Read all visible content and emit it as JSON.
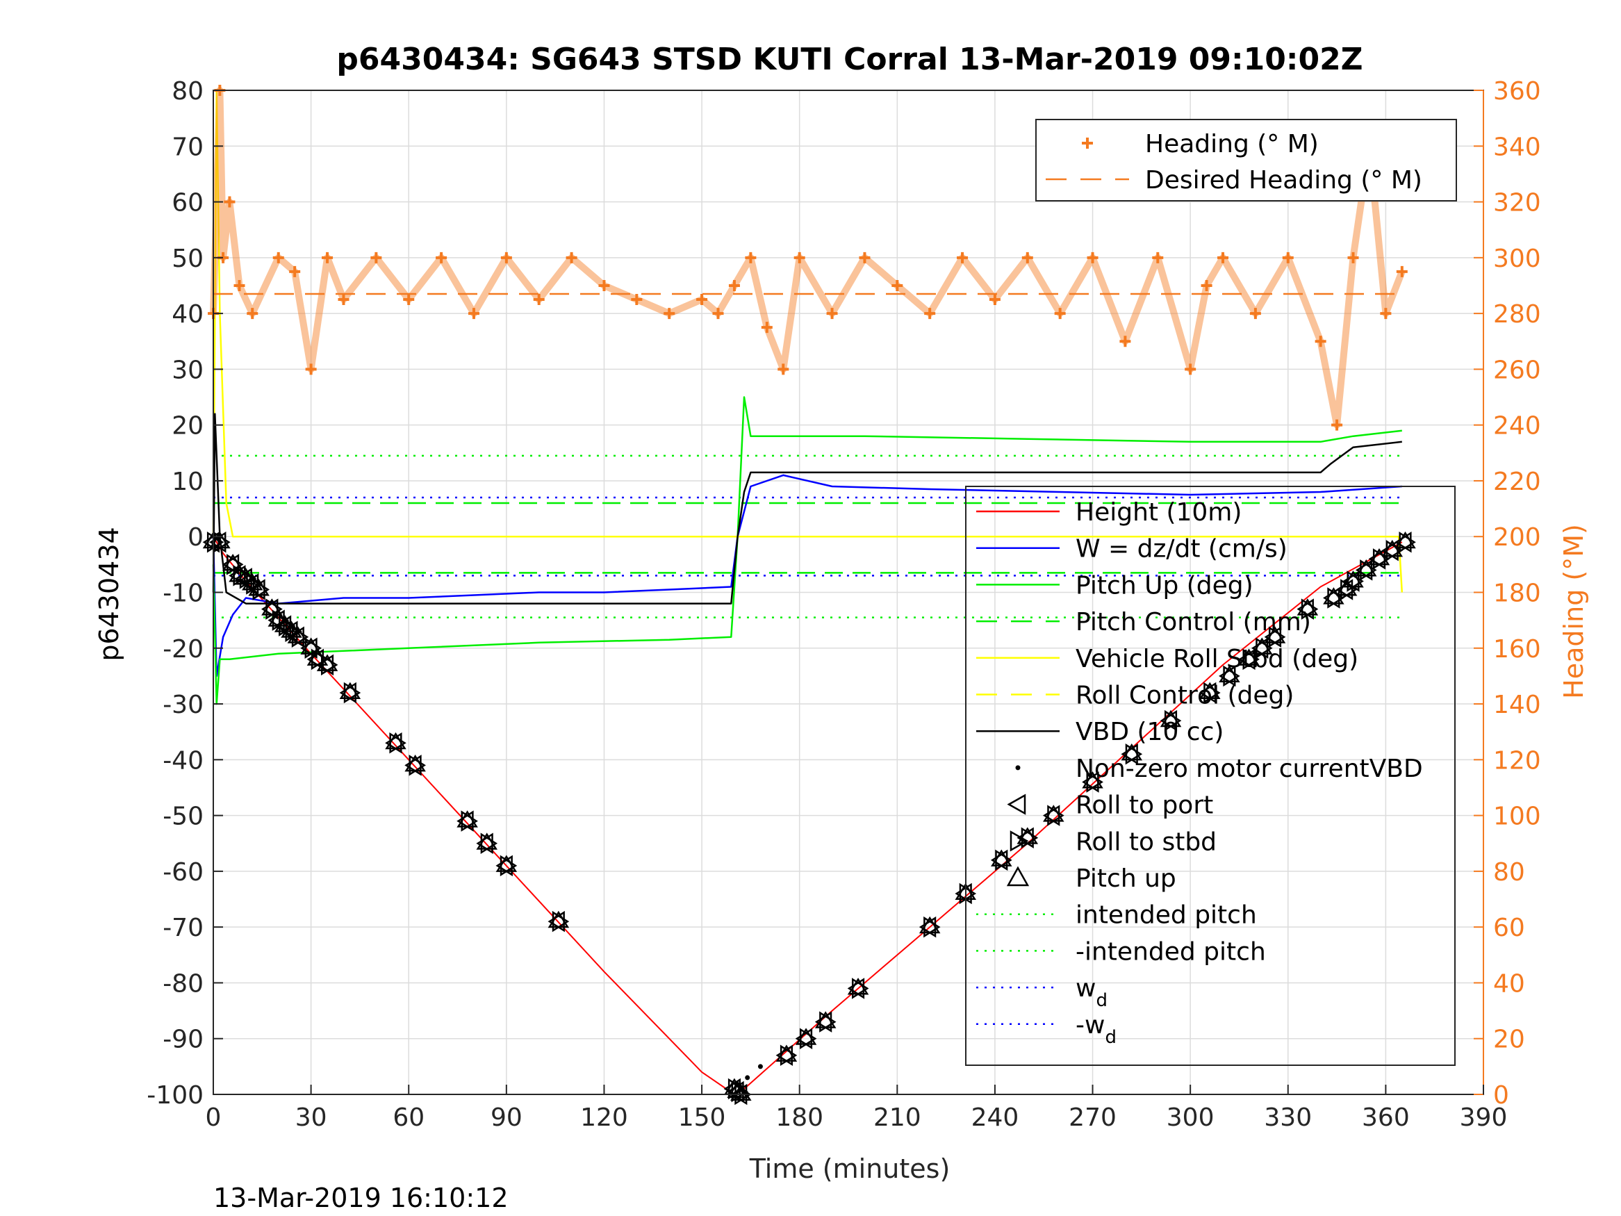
{
  "page": {
    "timestamp_footer": "13-Mar-2019 16:10:12"
  },
  "chart_data": {
    "type": "line",
    "title": "p6430434: SG643 STSD KUTI Corral 13-Mar-2019 09:10:02Z",
    "xlabel": "Time (minutes)",
    "ylabel": "p6430434",
    "y2label": "Heading (°M)",
    "xlim": [
      0,
      390
    ],
    "ylim": [
      -100,
      80
    ],
    "y2lim": [
      0,
      360
    ],
    "xticks": [
      0,
      30,
      60,
      90,
      120,
      150,
      180,
      210,
      240,
      270,
      300,
      330,
      360,
      390
    ],
    "yticks": [
      -100,
      -90,
      -80,
      -70,
      -60,
      -50,
      -40,
      -30,
      -20,
      -10,
      0,
      10,
      20,
      30,
      40,
      50,
      60,
      70,
      80
    ],
    "y2ticks": [
      0,
      20,
      40,
      60,
      80,
      100,
      120,
      140,
      160,
      180,
      200,
      220,
      240,
      260,
      280,
      300,
      320,
      340,
      360
    ],
    "grid": true,
    "colors": {
      "heading": "#f47a20",
      "height": "#ff0000",
      "w": "#0000ff",
      "pitch": "#00ee00",
      "roll": "#ffff00",
      "vbd": "#000000",
      "intended_pitch": "#00ee00",
      "wd": "#0000ff"
    },
    "legend_heading": {
      "placement": "top-right",
      "entries": [
        {
          "label": "Heading (° M)",
          "style": "plus",
          "color": "#f47a20"
        },
        {
          "label": "Desired Heading (° M)",
          "style": "dash",
          "color": "#f47a20"
        }
      ]
    },
    "legend_main": {
      "placement": "lower-right",
      "entries": [
        {
          "label": "Height (10m)",
          "style": "line",
          "color": "#ff0000"
        },
        {
          "label": "W = dz/dt (cm/s)",
          "style": "line",
          "color": "#0000ff"
        },
        {
          "label": "Pitch Up (deg)",
          "style": "line",
          "color": "#00ee00"
        },
        {
          "label": "Pitch Control (mm)",
          "style": "dash",
          "color": "#00ee00"
        },
        {
          "label": "Vehicle Roll Stbd (deg)",
          "style": "line",
          "color": "#ffff00"
        },
        {
          "label": "Roll Control (deg)",
          "style": "dash",
          "color": "#ffff00"
        },
        {
          "label": "VBD (10 cc)",
          "style": "line",
          "color": "#000000"
        },
        {
          "label": "Non-zero motor currentVBD",
          "style": "dot",
          "color": "#000000"
        },
        {
          "label": "Roll to port",
          "style": "tri-left",
          "color": "#000000"
        },
        {
          "label": "Roll to stbd",
          "style": "tri-right",
          "color": "#000000"
        },
        {
          "label": "Pitch up",
          "style": "tri-up",
          "color": "#000000"
        },
        {
          "label": "intended pitch",
          "style": "dot-line",
          "color": "#00ee00"
        },
        {
          "label": "-intended pitch",
          "style": "dot-line",
          "color": "#00ee00"
        },
        {
          "label": "w",
          "sub": "d",
          "style": "dot-line",
          "color": "#0000ff"
        },
        {
          "label": "-w",
          "sub": "d",
          "style": "dot-line",
          "color": "#0000ff"
        }
      ]
    },
    "series": [
      {
        "name": "Height (10m)",
        "axis": "left",
        "color": "#ff0000",
        "x": [
          0,
          3,
          10,
          30,
          60,
          90,
          120,
          150,
          160,
          163,
          190,
          220,
          250,
          280,
          310,
          340,
          365
        ],
        "y": [
          0,
          -3,
          -8,
          -21,
          -40,
          -59,
          -78,
          -96,
          -100,
          -99,
          -85,
          -70,
          -55,
          -39,
          -23,
          -9,
          -1
        ]
      },
      {
        "name": "W = dz/dt (cm/s)",
        "axis": "left",
        "color": "#0000ff",
        "x": [
          0,
          1,
          3,
          6,
          10,
          20,
          40,
          60,
          80,
          100,
          120,
          140,
          159,
          161,
          165,
          175,
          190,
          220,
          260,
          300,
          340,
          365
        ],
        "y": [
          0,
          -25,
          -18,
          -14,
          -11,
          -12,
          -11,
          -11,
          -10.5,
          -10,
          -10,
          -9.5,
          -9,
          0,
          9,
          11,
          9,
          8.5,
          8,
          7.5,
          8,
          9
        ]
      },
      {
        "name": "Pitch Up (deg)",
        "axis": "left",
        "color": "#00ee00",
        "x": [
          0,
          1,
          2,
          5,
          20,
          60,
          100,
          140,
          159,
          161,
          163,
          165,
          200,
          250,
          300,
          340,
          350,
          365
        ],
        "y": [
          -5,
          -30,
          -22,
          -22,
          -21,
          -20,
          -19,
          -18.5,
          -18,
          0,
          25,
          18,
          18,
          17.5,
          17,
          17,
          18,
          19
        ]
      },
      {
        "name": "Vehicle Roll Stbd (deg)",
        "axis": "left",
        "color": "#ffff00",
        "x": [
          0,
          1,
          2,
          4,
          6,
          10,
          40,
          80,
          120,
          159,
          161,
          200,
          260,
          300,
          330,
          364,
          365
        ],
        "y": [
          0,
          80,
          40,
          6,
          0,
          0,
          0,
          0,
          0,
          0,
          0,
          0,
          0,
          0,
          0,
          0,
          -10
        ]
      },
      {
        "name": "VBD (10 cc)",
        "axis": "left",
        "color": "#000000",
        "x": [
          0,
          0.5,
          2,
          4,
          10,
          60,
          110,
          150,
          159,
          161,
          163,
          165,
          200,
          250,
          300,
          340,
          343,
          350,
          365
        ],
        "y": [
          -10,
          22,
          0,
          -10,
          -12,
          -12,
          -12,
          -12,
          -12,
          0,
          8,
          11.5,
          11.5,
          11.5,
          11.5,
          11.5,
          13,
          16,
          17
        ]
      },
      {
        "name": "Heading (° M)",
        "axis": "right",
        "color": "#f47a20",
        "x": [
          0,
          2,
          3,
          5,
          8,
          12,
          20,
          25,
          30,
          35,
          40,
          50,
          60,
          70,
          80,
          90,
          100,
          110,
          120,
          130,
          140,
          150,
          155,
          160,
          165,
          170,
          175,
          180,
          190,
          200,
          210,
          220,
          230,
          240,
          250,
          260,
          270,
          280,
          290,
          300,
          305,
          310,
          320,
          330,
          340,
          345,
          350,
          355,
          360,
          365
        ],
        "y": [
          280,
          360,
          300,
          320,
          290,
          280,
          300,
          295,
          260,
          300,
          285,
          300,
          285,
          300,
          280,
          300,
          285,
          300,
          290,
          285,
          280,
          285,
          280,
          290,
          300,
          275,
          260,
          300,
          280,
          300,
          290,
          280,
          300,
          285,
          300,
          280,
          300,
          270,
          300,
          260,
          290,
          300,
          280,
          300,
          270,
          240,
          300,
          340,
          280,
          295
        ]
      },
      {
        "name": "Desired Heading (° M)",
        "axis": "right",
        "color": "#f47a20",
        "x": [
          0,
          365
        ],
        "y": [
          287,
          287
        ]
      }
    ],
    "reference_lines": [
      {
        "name": "intended pitch",
        "y": 14.5,
        "color": "#00ee00"
      },
      {
        "name": "-intended pitch",
        "y": -14.5,
        "color": "#00ee00"
      },
      {
        "name": "w_d",
        "y": 7,
        "color": "#0000ff"
      },
      {
        "name": "-w_d",
        "y": -7,
        "color": "#0000ff"
      },
      {
        "name": "pitch control level",
        "y": 6,
        "color": "#00ee00"
      },
      {
        "name": "pitch control level",
        "y": -6.5,
        "color": "#00ee00"
      }
    ],
    "markers": {
      "x": [
        0,
        2,
        6,
        8,
        10,
        12,
        14,
        18,
        20,
        22,
        24,
        26,
        30,
        32,
        35,
        42,
        56,
        62,
        78,
        84,
        90,
        106,
        160,
        161,
        162,
        176,
        182,
        188,
        198,
        220,
        231,
        242,
        250,
        258,
        270,
        282,
        294,
        306,
        312,
        318,
        322,
        326,
        336,
        344,
        348,
        350,
        354,
        358,
        362,
        366
      ],
      "y": [
        -1,
        -1,
        -5,
        -7,
        -7.5,
        -8.5,
        -9.5,
        -13,
        -15,
        -16,
        -17,
        -18,
        -20,
        -22,
        -23,
        -28,
        -37,
        -41,
        -51,
        -55,
        -59,
        -69,
        -99,
        -99.5,
        -100,
        -93,
        -90,
        -87,
        -81,
        -70,
        -64,
        -58,
        -54,
        -50,
        -44,
        -39,
        -33,
        -28,
        -25,
        -22,
        -20,
        -18,
        -13,
        -11,
        -9.5,
        -8,
        -6,
        -4,
        -2.5,
        -1
      ]
    },
    "vbd_motor_dots": {
      "x": [
        164,
        168
      ],
      "y": [
        -97,
        -95
      ]
    }
  }
}
